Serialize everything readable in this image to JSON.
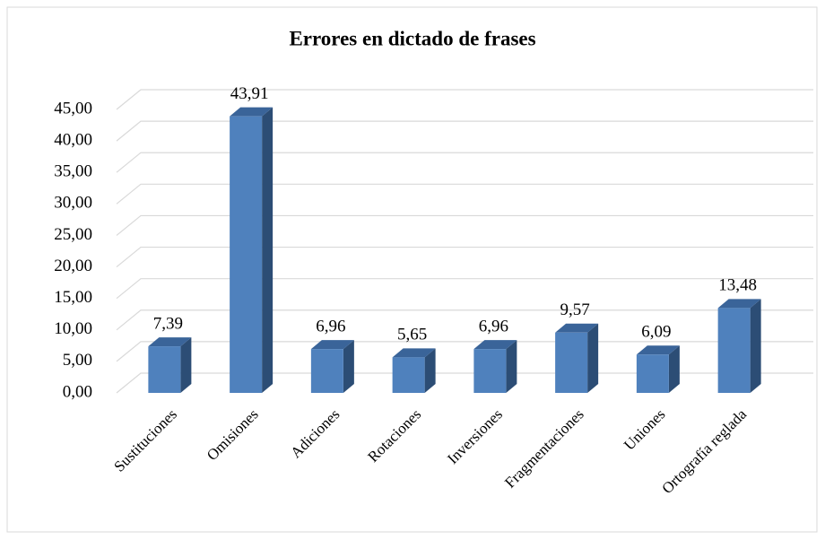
{
  "chart_data": {
    "type": "bar",
    "title": "Errores en dictado de frases",
    "categories": [
      "Sustituciones",
      "Omisiones",
      "Adiciones",
      "Rotaciones",
      "Inversiones",
      "Fragmentaciones",
      "Uniones",
      "Ortografía reglada"
    ],
    "values": [
      7.39,
      43.91,
      6.96,
      5.65,
      6.96,
      9.57,
      6.09,
      13.48
    ],
    "value_labels": [
      "7,39",
      "43,91",
      "6,96",
      "5,65",
      "6,96",
      "9,57",
      "6,09",
      "13,48"
    ],
    "color": "#4f81bd",
    "ylim": [
      0,
      45
    ],
    "yticks": [
      {
        "value": 0,
        "label": "0,00"
      },
      {
        "value": 5,
        "label": "5,00"
      },
      {
        "value": 10,
        "label": "10,00"
      },
      {
        "value": 15,
        "label": "15,00"
      },
      {
        "value": 20,
        "label": "20,00"
      },
      {
        "value": 25,
        "label": "25,00"
      },
      {
        "value": 30,
        "label": "30,00"
      },
      {
        "value": 35,
        "label": "35,00"
      },
      {
        "value": 40,
        "label": "40,00"
      },
      {
        "value": 45,
        "label": "45,00"
      }
    ],
    "grid": true
  }
}
